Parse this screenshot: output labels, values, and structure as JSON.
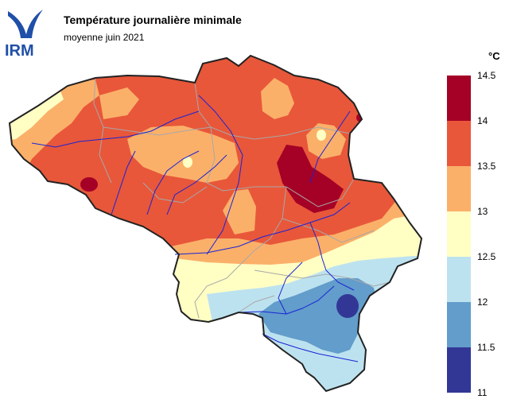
{
  "header": {
    "title": "Température journalière minimale",
    "subtitle": "moyenne juin 2021"
  },
  "logo": {
    "text": "IRM",
    "color": "#1f4fa8"
  },
  "legend": {
    "unit": "°C",
    "bins": [
      {
        "label": "14.5",
        "color": "#a50026"
      },
      {
        "label": "14",
        "color": "#e8573a"
      },
      {
        "label": "13.5",
        "color": "#fbb069"
      },
      {
        "label": "13",
        "color": "#ffffc4"
      },
      {
        "label": "12.5",
        "color": "#bde2ef"
      },
      {
        "label": "12",
        "color": "#629dcb"
      },
      {
        "label": "11.5",
        "color": "#323796"
      }
    ],
    "bottom_label": "11"
  }
}
